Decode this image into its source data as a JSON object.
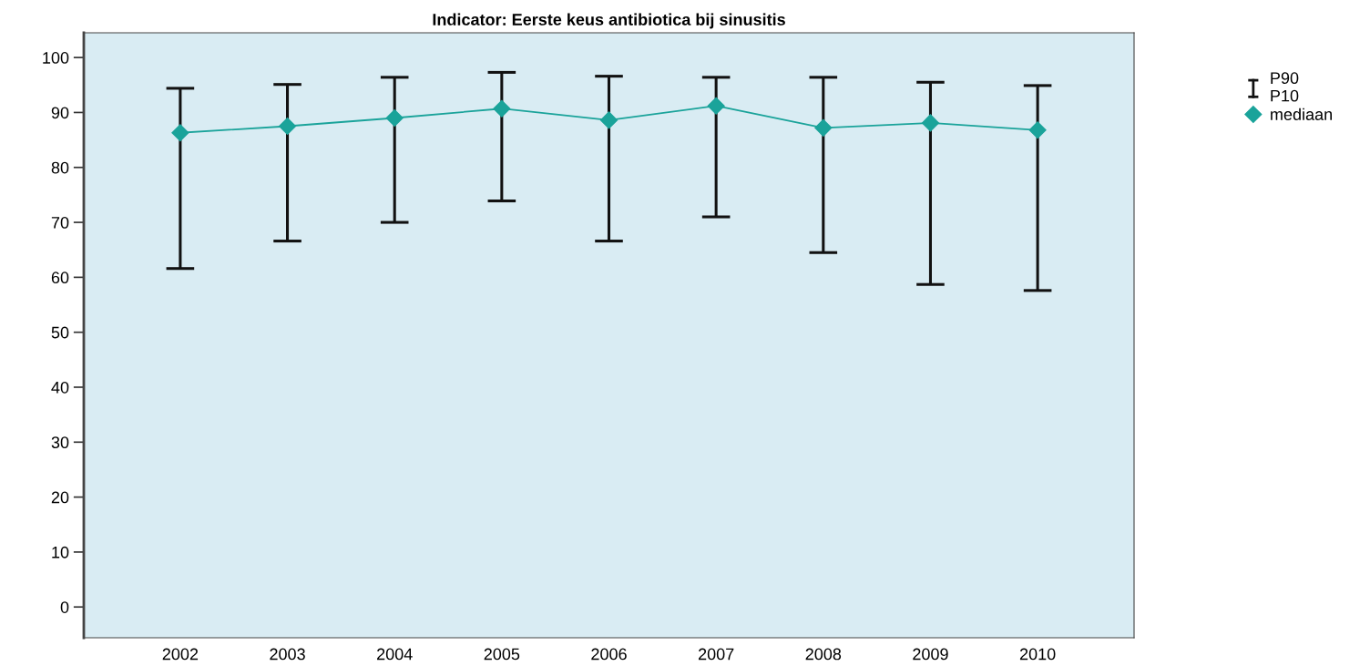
{
  "chart_data": {
    "type": "line",
    "title": "Indicator: Eerste keus antibiotica bij sinusitis",
    "categories": [
      "2002",
      "2003",
      "2004",
      "2005",
      "2006",
      "2007",
      "2008",
      "2009",
      "2010"
    ],
    "series": [
      {
        "name": "mediaan",
        "color": "#1aa39a",
        "values": [
          86.3,
          87.5,
          89.0,
          90.7,
          88.6,
          91.2,
          87.2,
          88.1,
          86.8
        ],
        "errors": [
          [
            61.6,
            94.4
          ],
          [
            66.6,
            95.1
          ],
          [
            70.0,
            96.4
          ],
          [
            73.9,
            97.3
          ],
          [
            66.6,
            96.6
          ],
          [
            71.0,
            96.4
          ],
          [
            64.5,
            96.4
          ],
          [
            58.7,
            95.5
          ],
          [
            57.6,
            94.9
          ]
        ]
      }
    ],
    "annotations": [
      "P90",
      "P10"
    ],
    "ylim": [
      -5.6,
      104.5
    ],
    "yticks": [
      0,
      10,
      20,
      30,
      40,
      50,
      60,
      70,
      80,
      90,
      100
    ],
    "marker": "diamond",
    "line_style": "solid",
    "grid": false,
    "legend": "top right"
  }
}
